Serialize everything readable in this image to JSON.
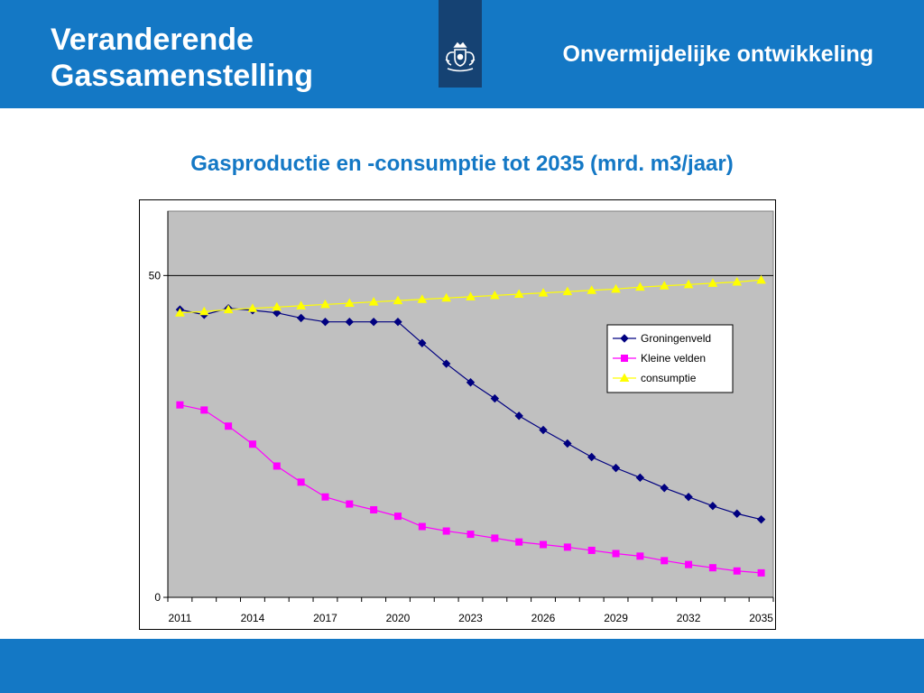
{
  "header": {
    "title_line1": "Veranderende",
    "title_line2": "Gassamenstelling",
    "subtitle": "Onvermijdelijke ontwikkeling",
    "logo_icon": "coat-of-arms-icon",
    "bar_color": "#1478c5",
    "logo_color": "#154273"
  },
  "chart_heading": "Gasproductie en -consumptie tot 2035 (mrd. m3/jaar)",
  "chart_data": {
    "type": "line",
    "title": "",
    "xlabel": "",
    "ylabel": "",
    "x": [
      2011,
      2012,
      2013,
      2014,
      2015,
      2016,
      2017,
      2018,
      2019,
      2020,
      2021,
      2022,
      2023,
      2024,
      2025,
      2026,
      2027,
      2028,
      2029,
      2030,
      2031,
      2032,
      2033,
      2034,
      2035
    ],
    "x_ticks": [
      "2011",
      "2014",
      "2017",
      "2020",
      "2023",
      "2026",
      "2029",
      "2032",
      "2035"
    ],
    "y_ticks": [
      "0",
      "50"
    ],
    "ylim": [
      0,
      60
    ],
    "grid": "horizontal at 50",
    "plot_background": "#c0c0c0",
    "legend_position": "right",
    "series": [
      {
        "name": "Groningenveld",
        "color": "#000080",
        "marker": "diamond",
        "values": [
          44.7,
          43.9,
          44.9,
          44.6,
          44.2,
          43.4,
          42.8,
          42.8,
          42.8,
          42.8,
          39.5,
          36.3,
          33.4,
          30.9,
          28.2,
          26.0,
          23.9,
          21.8,
          20.1,
          18.6,
          17.0,
          15.6,
          14.2,
          13.0,
          12.1
        ]
      },
      {
        "name": "Kleine velden",
        "color": "#ff00ff",
        "marker": "square",
        "values": [
          29.9,
          29.1,
          26.6,
          23.8,
          20.4,
          17.9,
          15.6,
          14.5,
          13.6,
          12.6,
          11.0,
          10.3,
          9.8,
          9.2,
          8.6,
          8.2,
          7.8,
          7.3,
          6.8,
          6.4,
          5.7,
          5.1,
          4.6,
          4.1,
          3.8
        ]
      },
      {
        "name": "consumptie",
        "color": "#ffff00",
        "marker": "triangle",
        "values": [
          44.2,
          44.4,
          44.7,
          44.9,
          45.1,
          45.3,
          45.5,
          45.7,
          45.9,
          46.1,
          46.3,
          46.5,
          46.7,
          46.9,
          47.1,
          47.3,
          47.5,
          47.7,
          47.9,
          48.2,
          48.4,
          48.6,
          48.8,
          49.0,
          49.3
        ]
      }
    ]
  }
}
